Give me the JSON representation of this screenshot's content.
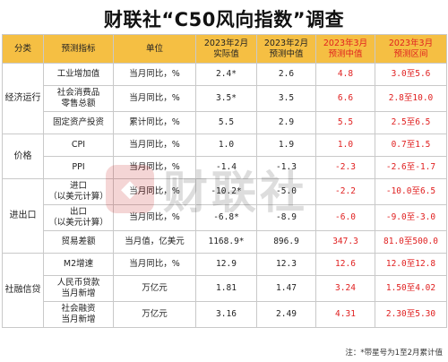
{
  "title": "财联社“C50风向指数”调查",
  "watermark": "财联社",
  "headers": {
    "category": "分类",
    "indicator": "预测指标",
    "unit": "单位",
    "actual": "2023年2月\n实际值",
    "median_feb": "2023年2月\n预测中值",
    "median_mar": "2023年3月\n预测中值",
    "range_mar": "2023年3月\n预测区间"
  },
  "categories": {
    "economy": "经济运行",
    "price": "价格",
    "trade": "进出口",
    "finance": "社融信贷"
  },
  "rows": [
    {
      "indicator": "工业增加值",
      "unit": "当月同比，%",
      "actual": "2.4*",
      "median_feb": "2.6",
      "median_mar": "4.8",
      "range": "3.0至5.6"
    },
    {
      "indicator": "社会消费品\n零售总额",
      "unit": "当月同比，%",
      "actual": "3.5*",
      "median_feb": "3.5",
      "median_mar": "6.6",
      "range": "2.8至10.0"
    },
    {
      "indicator": "固定资产投资",
      "unit": "累计同比，%",
      "actual": "5.5",
      "median_feb": "2.9",
      "median_mar": "5.5",
      "range": "2.5至6.5"
    },
    {
      "indicator": "CPI",
      "unit": "当月同比，%",
      "actual": "1.0",
      "median_feb": "1.9",
      "median_mar": "1.0",
      "range": "0.7至1.5"
    },
    {
      "indicator": "PPI",
      "unit": "当月同比，%",
      "actual": "-1.4",
      "median_feb": "-1.3",
      "median_mar": "-2.3",
      "range": "-2.6至-1.7"
    },
    {
      "indicator": "进口\n（以美元计算）",
      "unit": "当月同比，%",
      "actual": "-10.2*",
      "median_feb": "-5.0",
      "median_mar": "-2.2",
      "range": "-10.0至6.5"
    },
    {
      "indicator": "出口\n（以美元计算）",
      "unit": "当月同比，%",
      "actual": "-6.8*",
      "median_feb": "-8.9",
      "median_mar": "-6.0",
      "range": "-9.0至-3.0"
    },
    {
      "indicator": "贸易差额",
      "unit": "当月值，亿美元",
      "actual": "1168.9*",
      "median_feb": "896.9",
      "median_mar": "347.3",
      "range": "81.0至500.0"
    },
    {
      "indicator": "M2增速",
      "unit": "当月同比，%",
      "actual": "12.9",
      "median_feb": "12.3",
      "median_mar": "12.6",
      "range": "12.0至12.8"
    },
    {
      "indicator": "人民币贷款\n当月新增",
      "unit": "万亿元",
      "actual": "1.81",
      "median_feb": "1.47",
      "median_mar": "3.24",
      "range": "1.50至4.02"
    },
    {
      "indicator": "社会融资\n当月新增",
      "unit": "万亿元",
      "actual": "3.16",
      "median_feb": "2.49",
      "median_mar": "4.31",
      "range": "2.30至5.30"
    }
  ],
  "footnote": "注：*带星号为1至2月累计值",
  "colors": {
    "header_bg": "#f5bf43",
    "highlight_red": "#e02020"
  }
}
